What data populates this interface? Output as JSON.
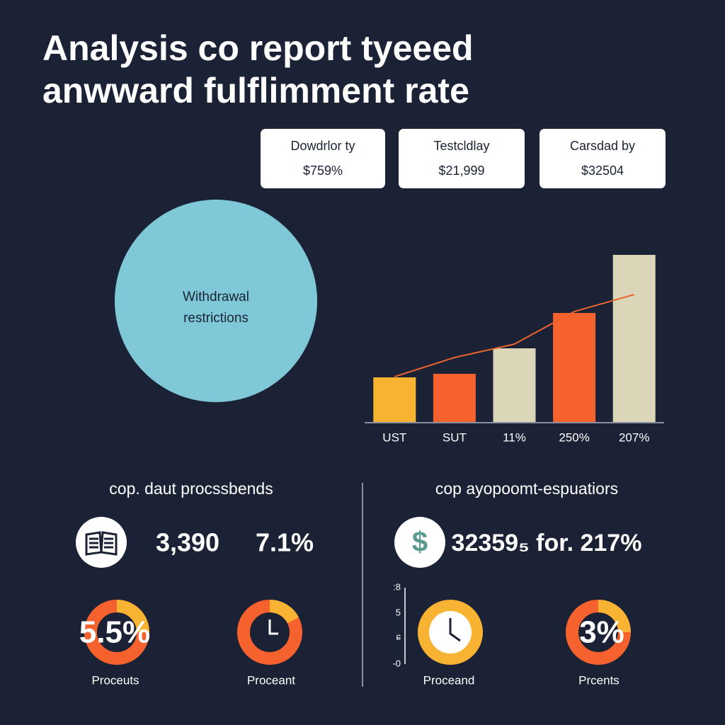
{
  "header": {
    "title_lines": [
      "Analysis co report tyeeed",
      "anwward fulflimment rate"
    ]
  },
  "cards": [
    {
      "label": "Dowdrlor ty",
      "value": "$759%"
    },
    {
      "label": "Testcldlay",
      "value": "$21,999"
    },
    {
      "label": "Carsdad by",
      "value": "$32504"
    }
  ],
  "circle": {
    "label_lines": [
      "Withdrawal",
      "restrictions"
    ]
  },
  "chart_data": {
    "type": "bar",
    "categories": [
      "UST",
      "SUT",
      "11%",
      "250%",
      "207%"
    ],
    "values": [
      63,
      68,
      104,
      154,
      236
    ],
    "colors": [
      "#f8b332",
      "#f6622d",
      "#dcd6b8",
      "#f6622d",
      "#dcd6b8"
    ],
    "trend": {
      "color": "#e8642c",
      "values": [
        64,
        91,
        110,
        156,
        180
      ]
    }
  },
  "stats": [
    {
      "heading": "cop. daut procssbends",
      "items": [
        "3,390",
        "7.1%"
      ]
    },
    {
      "heading": "cop ayopoomt-espuatiors",
      "items": [
        "32359₅ for. 217%"
      ]
    }
  ],
  "scale_labels": [
    ":8",
    "5",
    "ɕ",
    "-0"
  ],
  "gauges": [
    {
      "center": "5.5%",
      "label": "Proceuts"
    },
    {
      "label": "Proceant"
    },
    {
      "label": "Proceand"
    },
    {
      "center": "3%",
      "label": "Prcents"
    }
  ]
}
